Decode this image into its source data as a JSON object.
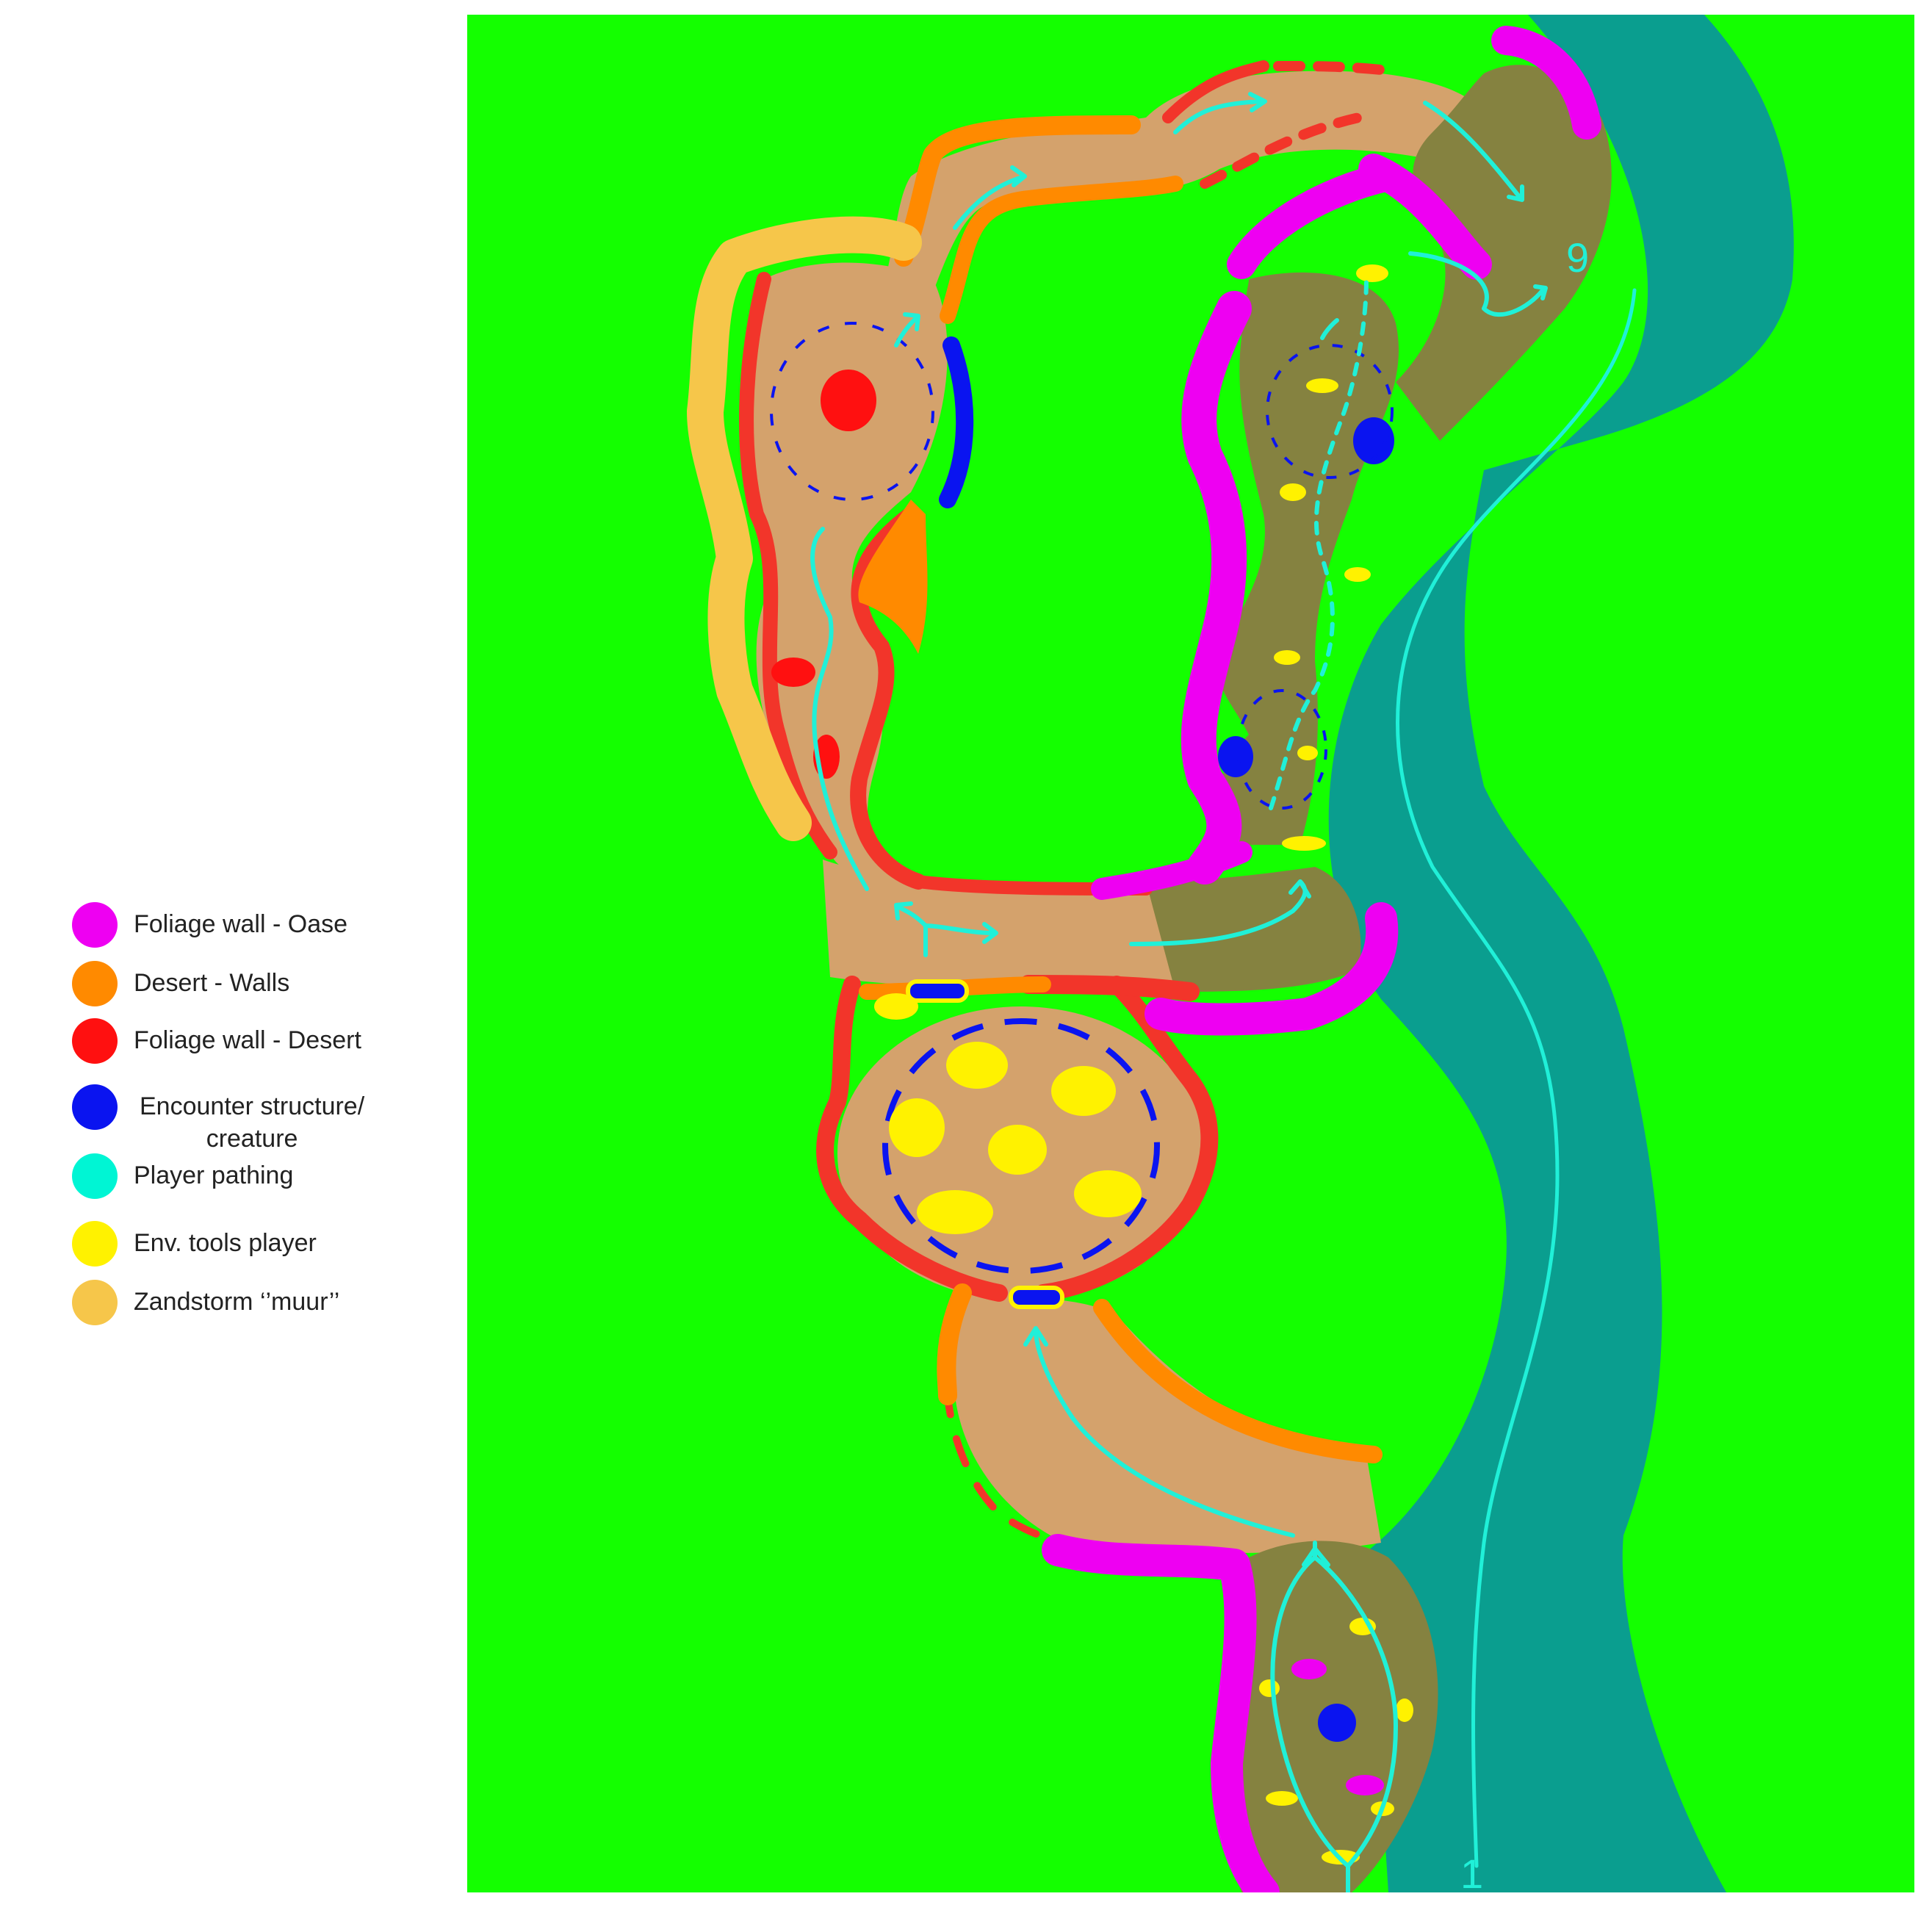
{
  "legend": {
    "items": [
      {
        "label": "Foliage wall - Oase",
        "color": "#ee00f2",
        "icon": "magenta-dot"
      },
      {
        "label": "Desert - Walls",
        "color": "#ff8a00",
        "icon": "orange-dot"
      },
      {
        "label": "Foliage wall - Desert",
        "color": "#ff1010",
        "icon": "red-dot"
      },
      {
        "label_line1": "Encounter structure/",
        "label_line2": "creature",
        "color": "#0a14f0",
        "icon": "blue-dot"
      },
      {
        "label": "Player pathing",
        "color": "#00f5d4",
        "icon": "cyan-dot"
      },
      {
        "label": "Env. tools player",
        "color": "#fff200",
        "icon": "yellow-dot"
      },
      {
        "label": "Zandstorm ‘’muur’’",
        "color": "#f6c64a",
        "icon": "sand-dot"
      }
    ]
  },
  "map": {
    "colors": {
      "grass": "#14ff00",
      "river": "#0a9e8f",
      "sand": "#d4a26c",
      "oasis": "#858240",
      "oasis_wall": "#ee00f2",
      "desert_wall": "#ff8a00",
      "desert_foliage": "#f2352a",
      "encounter": "#0a14f0",
      "path": "#20f0d8",
      "tools": "#fff200",
      "sandstorm": "#f6c64a"
    },
    "marker_start": "1",
    "marker_end": "9"
  }
}
